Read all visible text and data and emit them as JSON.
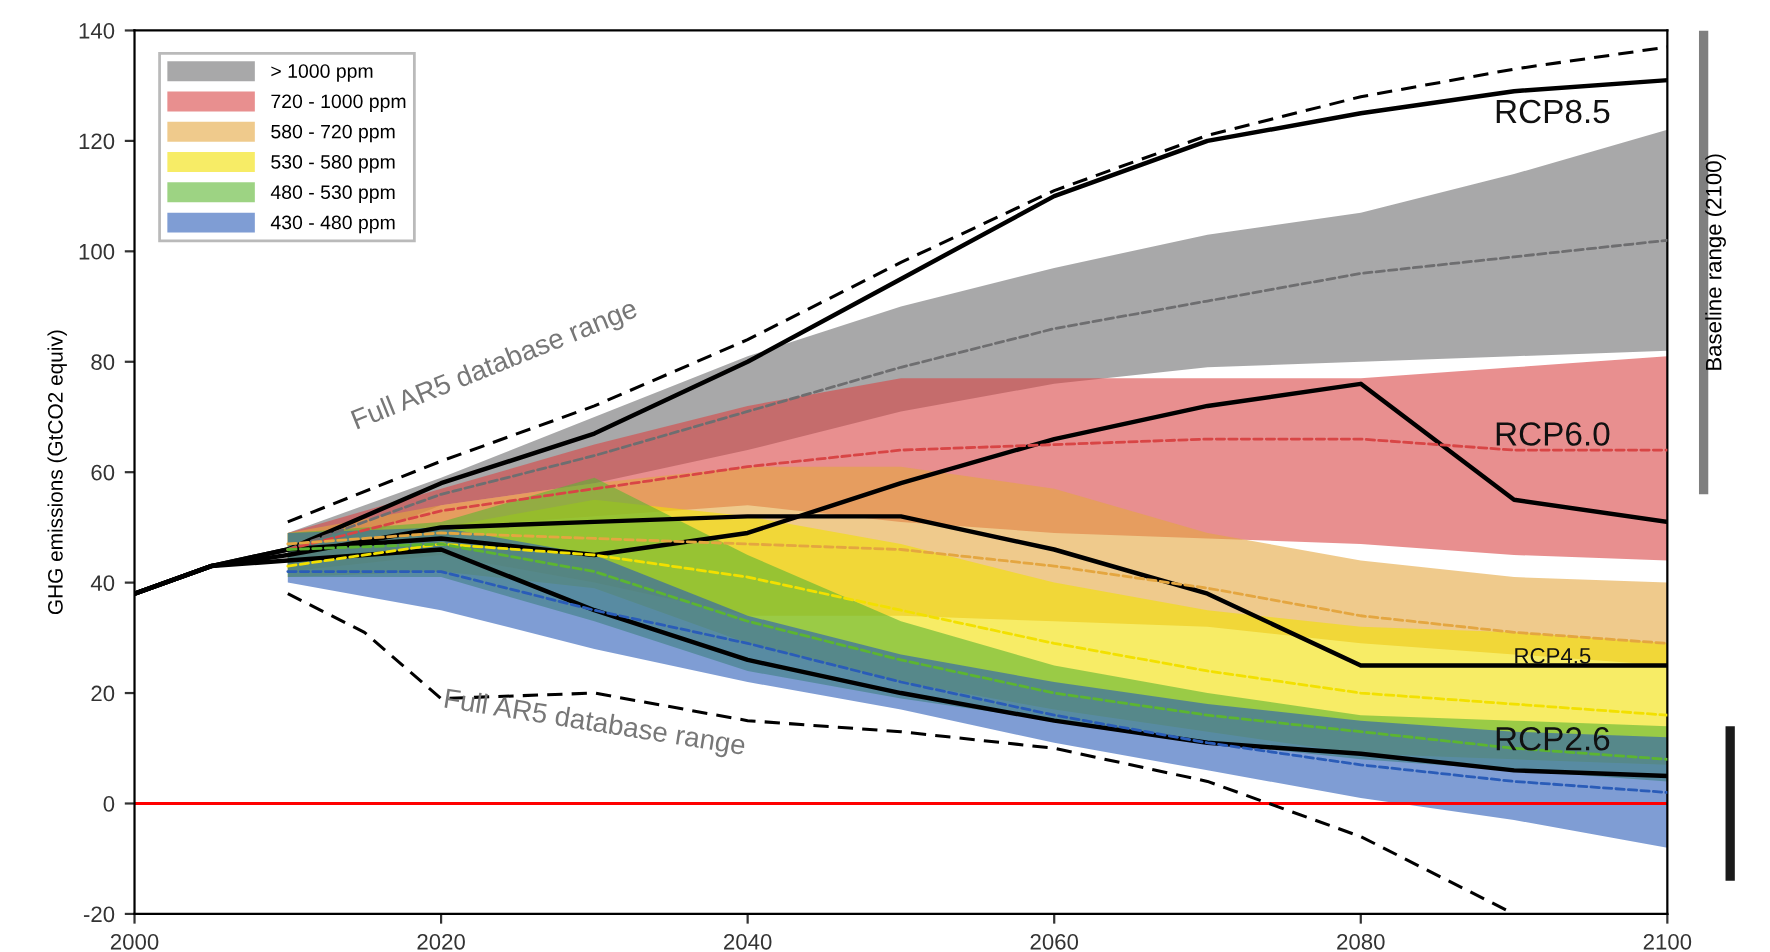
{
  "chart_data": [
    {
      "type": "line",
      "ylabel": "GHG emissions (GtCO2 equiv)",
      "xlim": [
        2000,
        2100
      ],
      "ylim": [
        -20,
        140
      ],
      "xticks": [
        2000,
        2020,
        2040,
        2060,
        2080,
        2100
      ],
      "yticks": [
        -20,
        0,
        20,
        40,
        60,
        80,
        100,
        120,
        140
      ],
      "grid": false,
      "legend": "top left",
      "series": [
        {
          "type": "line",
          "line_style": "dashed",
          "name": "> 1000 ppm",
          "color": "#6e6e70",
          "x": [
            2010,
            2020,
            2030,
            2040,
            2050,
            2060,
            2070,
            2080,
            2090,
            2100
          ],
          "values": [
            46,
            56,
            63,
            71,
            79,
            86,
            91,
            96,
            99,
            102
          ],
          "lower": [
            43,
            54,
            58,
            64,
            71,
            76,
            79,
            80,
            81,
            82
          ],
          "upper": [
            49,
            59,
            70,
            81,
            90,
            97,
            103,
            107,
            114,
            122
          ]
        },
        {
          "type": "line",
          "line_style": "dashed",
          "name": "720 - 1000 ppm",
          "color": "#d84545",
          "x": [
            2010,
            2020,
            2030,
            2040,
            2050,
            2060,
            2070,
            2080,
            2090,
            2100
          ],
          "values": [
            46,
            53,
            57,
            61,
            64,
            65,
            66,
            66,
            64,
            64
          ],
          "lower": [
            43,
            50,
            52,
            54,
            51,
            49,
            48,
            47,
            45,
            44
          ],
          "upper": [
            49,
            57,
            65,
            72,
            77,
            77,
            77,
            77,
            79,
            81
          ]
        },
        {
          "type": "line",
          "line_style": "dashed",
          "name": "580 - 720 ppm",
          "color": "#e4a640",
          "x": [
            2010,
            2020,
            2030,
            2040,
            2050,
            2060,
            2070,
            2080,
            2090,
            2100
          ],
          "values": [
            47,
            49,
            48,
            47,
            46,
            43,
            39,
            34,
            31,
            29
          ],
          "lower": [
            42,
            45,
            40,
            34,
            34,
            33,
            32,
            29,
            27,
            25
          ],
          "upper": [
            49,
            54,
            58,
            61,
            61,
            57,
            49,
            44,
            41,
            40
          ]
        },
        {
          "type": "line",
          "line_style": "dashed",
          "name": "530 - 580 ppm",
          "color": "#f2e000",
          "x": [
            2010,
            2020,
            2030,
            2040,
            2050,
            2060,
            2070,
            2080,
            2090,
            2100
          ],
          "values": [
            43,
            47,
            45,
            41,
            35,
            29,
            24,
            20,
            18,
            16
          ],
          "lower": [
            41,
            42,
            39,
            29,
            22,
            17,
            13,
            9,
            8,
            7
          ],
          "upper": [
            49,
            50,
            55,
            52,
            47,
            40,
            35,
            32,
            31,
            29
          ]
        },
        {
          "type": "line",
          "line_style": "dashed",
          "name": "480 - 530 ppm",
          "color": "#5cb531",
          "x": [
            2010,
            2020,
            2030,
            2040,
            2050,
            2060,
            2070,
            2080,
            2090,
            2100
          ],
          "values": [
            46,
            47,
            42,
            33,
            26,
            20,
            16,
            13,
            10,
            8
          ],
          "lower": [
            41,
            41,
            33,
            24,
            19,
            15,
            11,
            8,
            6,
            4
          ],
          "upper": [
            49,
            51,
            59,
            45,
            33,
            25,
            20,
            16,
            15,
            14
          ]
        },
        {
          "type": "line",
          "line_style": "dashed",
          "name": "430 - 480 ppm",
          "color": "#2a5cb8",
          "x": [
            2010,
            2020,
            2030,
            2040,
            2050,
            2060,
            2070,
            2080,
            2090,
            2100
          ],
          "values": [
            42,
            42,
            35,
            29,
            22,
            16,
            11,
            7,
            4,
            2
          ],
          "lower": [
            40,
            35,
            28,
            22,
            17,
            11,
            6,
            1,
            -3,
            -8
          ],
          "upper": [
            49,
            50,
            45,
            34,
            27,
            22,
            18,
            15,
            13,
            12
          ]
        },
        {
          "type": "line",
          "color": "#000000",
          "line_style": "dashed",
          "x": [
            2010,
            2020,
            2030,
            2040,
            2050,
            2060,
            2070,
            2080,
            2090,
            2100
          ],
          "values": [
            51,
            62,
            72,
            84,
            98,
            111,
            121,
            128,
            133,
            137
          ]
        },
        {
          "type": "line",
          "color": "#000000",
          "line_style": "dashed",
          "x": [
            2010,
            2015,
            2020,
            2030,
            2040,
            2050,
            2060,
            2070,
            2080,
            2090
          ],
          "values": [
            38,
            31,
            19,
            20,
            15,
            13,
            10,
            4,
            -6,
            -20
          ]
        },
        {
          "type": "line",
          "color": "#000000",
          "x": [
            2000,
            2005,
            2010,
            2020,
            2030,
            2040,
            2050,
            2060,
            2070,
            2080,
            2090,
            2100
          ],
          "values": [
            38,
            43,
            46,
            58,
            67,
            80,
            95,
            110,
            120,
            125,
            129,
            131
          ]
        },
        {
          "type": "line",
          "color": "#000000",
          "x": [
            2000,
            2005,
            2010,
            2020,
            2030,
            2040,
            2050,
            2060,
            2070,
            2080,
            2090,
            2100
          ],
          "values": [
            38,
            43,
            46,
            48,
            45,
            49,
            58,
            66,
            72,
            76,
            55,
            51
          ]
        },
        {
          "type": "line",
          "color": "#000000",
          "x": [
            2000,
            2005,
            2010,
            2020,
            2030,
            2040,
            2050,
            2060,
            2070,
            2080,
            2090,
            2100
          ],
          "values": [
            38,
            43,
            45,
            50,
            51,
            52,
            52,
            46,
            38,
            25,
            25,
            25
          ]
        },
        {
          "type": "line",
          "color": "#000000",
          "x": [
            2000,
            2005,
            2010,
            2020,
            2030,
            2040,
            2050,
            2060,
            2070,
            2080,
            2090,
            2100
          ],
          "values": [
            38,
            43,
            44,
            46,
            35,
            26,
            20,
            15,
            11,
            9,
            6,
            5
          ]
        }
      ],
      "ref_lines": [
        {
          "axis": "y",
          "value": 0,
          "color": "#ff0000"
        }
      ],
      "annotations": [
        "Full AR5 database range",
        "Full AR5 database range",
        "RCP8.5",
        "RCP6.0",
        "RCP4.5",
        "RCP2.6"
      ]
    },
    {
      "type": "bar",
      "categories": [
        null,
        null
      ],
      "base": [
        56,
        -14
      ],
      "values": [
        84,
        28
      ],
      "colors": [
        "#7f7f7f",
        "#1a1a1a"
      ],
      "ylim": [
        -20,
        140
      ],
      "tick_labels": false,
      "annotations": [
        "Baseline range (2100)"
      ]
    }
  ]
}
